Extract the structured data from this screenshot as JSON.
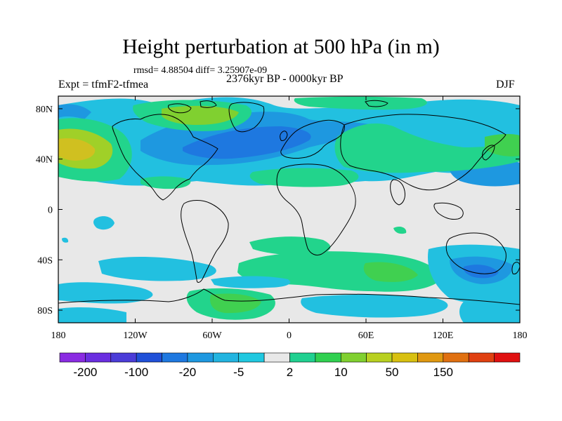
{
  "title": "Height perturbation at 500 hPa (in m)",
  "stats": "rmsd= 4.88504 diff= 3.25907e-09",
  "experiment": "Expt = tfmF2-tfmea",
  "period": "2376kyr BP - 0000kyr BP",
  "season": "DJF",
  "axes": {
    "lat_labels": [
      "80N",
      "40N",
      "0",
      "40S",
      "80S"
    ],
    "lat_values": [
      80,
      40,
      0,
      -40,
      -80
    ],
    "lon_labels": [
      "180",
      "120W",
      "60W",
      "0",
      "60E",
      "120E",
      "180"
    ],
    "lon_values": [
      -180,
      -120,
      -60,
      0,
      60,
      120,
      180
    ]
  },
  "legend": {
    "labels": [
      "-200",
      "-100",
      "-20",
      "-5",
      "2",
      "10",
      "50",
      "150"
    ],
    "colors": [
      "#8a2be2",
      "#6a2ee0",
      "#4b3cd8",
      "#2050d8",
      "#1e78e0",
      "#1e98e0",
      "#22b4e0",
      "#20c8e0",
      "#e8e8e8",
      "#20d090",
      "#30d050",
      "#80d030",
      "#b8d020",
      "#d8c010",
      "#e09810",
      "#e07010",
      "#e04010",
      "#e01010"
    ]
  },
  "colors": {
    "background": "#e8e8e8",
    "neg_light": "#22c0e0",
    "neg_mid": "#1e98e0",
    "neg_dark": "#1e78e0",
    "pos_light": "#22d48c",
    "pos_mid": "#40d050",
    "pos_strong": "#a0d028",
    "pos_max": "#d0c020"
  }
}
